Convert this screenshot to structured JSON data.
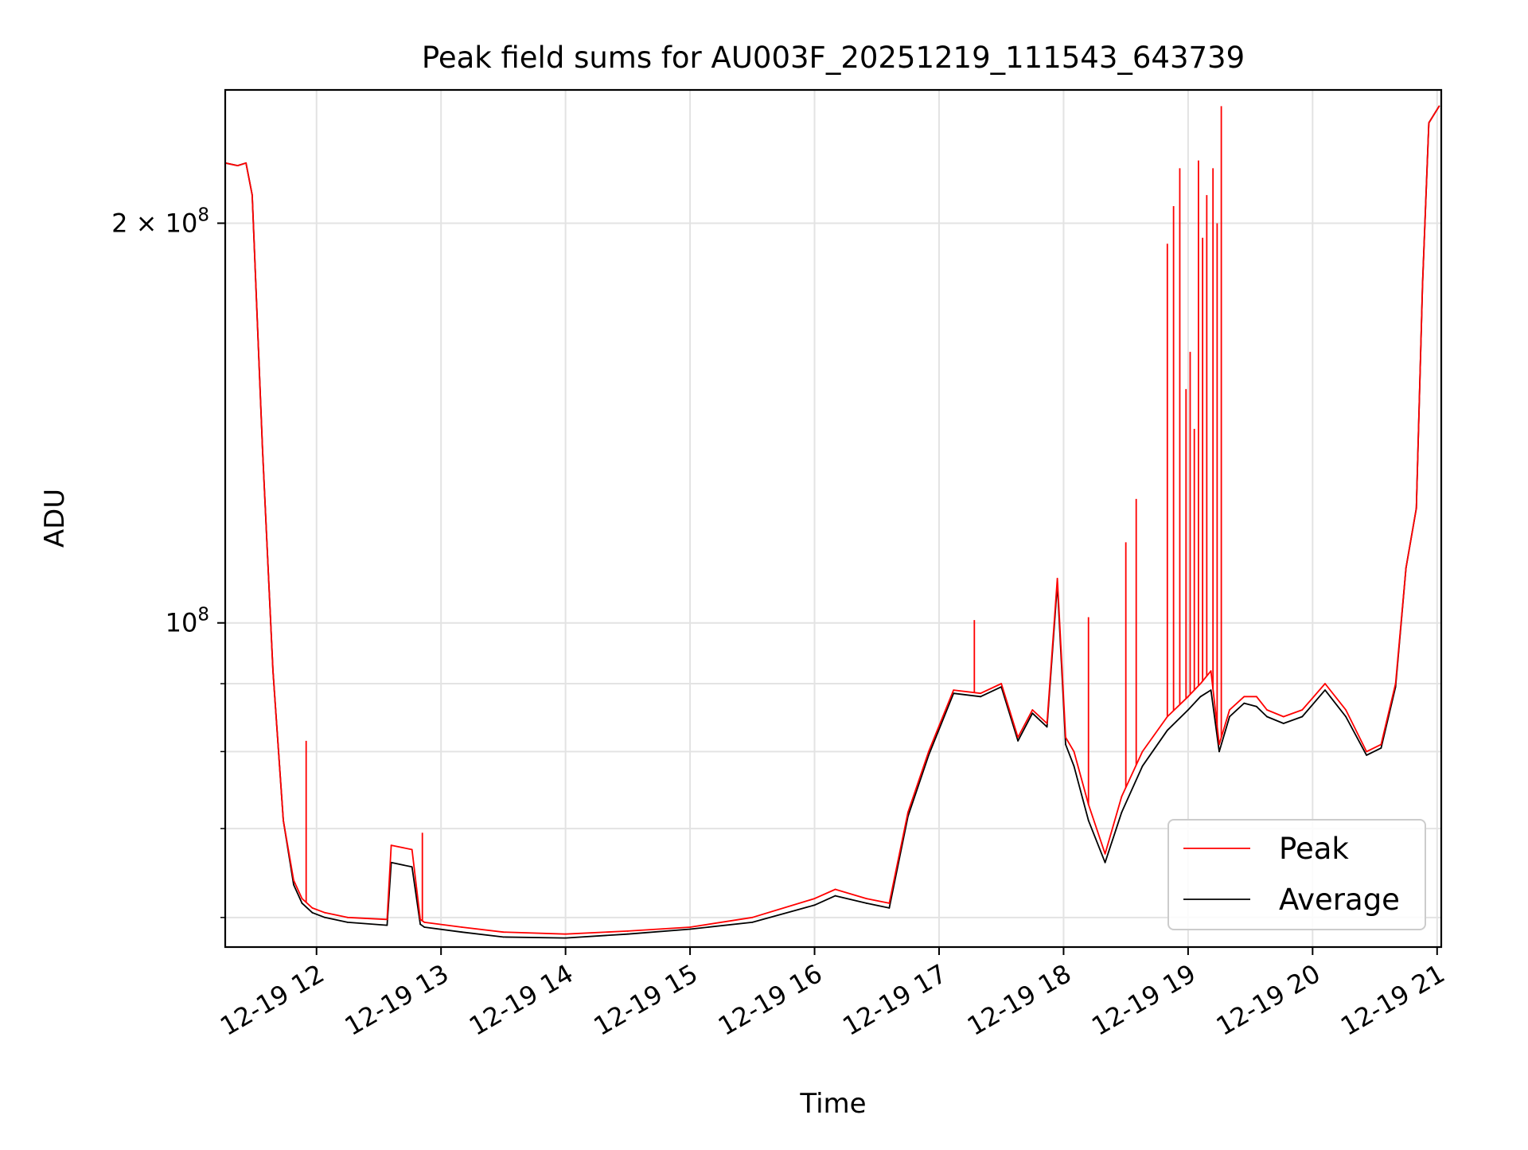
{
  "chart_data": {
    "type": "line",
    "title": "Peak field sums for AU003F_20251219_111543_643739",
    "xlabel": "Time",
    "ylabel": "ADU",
    "y_scale": "log",
    "grid": true,
    "legend_position": "lower-right",
    "xlim": [
      "2025-12-19 11:16",
      "2025-12-19 21:02"
    ],
    "ylim": [
      57000000,
      252000000
    ],
    "x_ticks": [
      {
        "value": "2025-12-19 12:00",
        "label": "12-19 12"
      },
      {
        "value": "2025-12-19 13:00",
        "label": "12-19 13"
      },
      {
        "value": "2025-12-19 14:00",
        "label": "12-19 14"
      },
      {
        "value": "2025-12-19 15:00",
        "label": "12-19 15"
      },
      {
        "value": "2025-12-19 16:00",
        "label": "12-19 16"
      },
      {
        "value": "2025-12-19 17:00",
        "label": "12-19 17"
      },
      {
        "value": "2025-12-19 18:00",
        "label": "12-19 18"
      },
      {
        "value": "2025-12-19 19:00",
        "label": "12-19 19"
      },
      {
        "value": "2025-12-19 20:00",
        "label": "12-19 20"
      },
      {
        "value": "2025-12-19 21:00",
        "label": "12-19 21"
      }
    ],
    "y_ticks_major": [
      {
        "value": 100000000,
        "base": "10",
        "exp": "8",
        "mantissa": ""
      },
      {
        "value": 200000000,
        "base": "10",
        "exp": "8",
        "mantissa": "2 × "
      }
    ],
    "y_ticks_minor": [
      60000000,
      70000000,
      80000000,
      90000000
    ],
    "series": [
      {
        "name": "Peak",
        "color": "#ff0000",
        "x": [
          "2025-12-19 11:16",
          "2025-12-19 11:22",
          "2025-12-19 11:26",
          "2025-12-19 11:29",
          "2025-12-19 11:34",
          "2025-12-19 11:39",
          "2025-12-19 11:44",
          "2025-12-19 11:49",
          "2025-12-19 11:53",
          "2025-12-19 11:58",
          "2025-12-19 12:04",
          "2025-12-19 12:15",
          "2025-12-19 12:34",
          "2025-12-19 12:36",
          "2025-12-19 12:46",
          "2025-12-19 12:50",
          "2025-12-19 12:52",
          "2025-12-19 13:10",
          "2025-12-19 13:30",
          "2025-12-19 14:00",
          "2025-12-19 14:30",
          "2025-12-19 15:00",
          "2025-12-19 15:30",
          "2025-12-19 16:00",
          "2025-12-19 16:10",
          "2025-12-19 16:25",
          "2025-12-19 16:36",
          "2025-12-19 16:45",
          "2025-12-19 16:55",
          "2025-12-19 17:07",
          "2025-12-19 17:20",
          "2025-12-19 17:30",
          "2025-12-19 17:38",
          "2025-12-19 17:45",
          "2025-12-19 17:52",
          "2025-12-19 17:57",
          "2025-12-19 18:01",
          "2025-12-19 18:05",
          "2025-12-19 18:12",
          "2025-12-19 18:20",
          "2025-12-19 18:28",
          "2025-12-19 18:38",
          "2025-12-19 18:50",
          "2025-12-19 19:00",
          "2025-12-19 19:06",
          "2025-12-19 19:11",
          "2025-12-19 19:15",
          "2025-12-19 19:20",
          "2025-12-19 19:27",
          "2025-12-19 19:33",
          "2025-12-19 19:38",
          "2025-12-19 19:46",
          "2025-12-19 19:55",
          "2025-12-19 20:06",
          "2025-12-19 20:16",
          "2025-12-19 20:26",
          "2025-12-19 20:33",
          "2025-12-19 20:40",
          "2025-12-19 20:45",
          "2025-12-19 20:50",
          "2025-12-19 20:53",
          "2025-12-19 20:56",
          "2025-12-19 21:01"
        ],
        "y": [
          222000000,
          221000000,
          222000000,
          210000000,
          135000000,
          92000000,
          71000000,
          64000000,
          62000000,
          61000000,
          60500000,
          60000000,
          59800000,
          68000000,
          67500000,
          59800000,
          59500000,
          59000000,
          58500000,
          58300000,
          58600000,
          59000000,
          60000000,
          62000000,
          63000000,
          62000000,
          61500000,
          72000000,
          80000000,
          89000000,
          88500000,
          90000000,
          82000000,
          86000000,
          84000000,
          108000000,
          82000000,
          80000000,
          73000000,
          67000000,
          74000000,
          80000000,
          85000000,
          88000000,
          90000000,
          92000000,
          81000000,
          86000000,
          88000000,
          88000000,
          86000000,
          85000000,
          86000000,
          90000000,
          86000000,
          80000000,
          81000000,
          90000000,
          110000000,
          122000000,
          180000000,
          238000000,
          245000000
        ],
        "spikes": [
          {
            "x": "2025-12-19 11:55",
            "y": 81500000
          },
          {
            "x": "2025-12-19 12:51",
            "y": 69500000
          },
          {
            "x": "2025-12-19 17:17",
            "y": 100500000
          },
          {
            "x": "2025-12-19 18:12",
            "y": 101000000
          },
          {
            "x": "2025-12-19 18:30",
            "y": 115000000
          },
          {
            "x": "2025-12-19 18:35",
            "y": 124000000
          },
          {
            "x": "2025-12-19 18:50",
            "y": 193000000
          },
          {
            "x": "2025-12-19 18:53",
            "y": 206000000
          },
          {
            "x": "2025-12-19 18:56",
            "y": 220000000
          },
          {
            "x": "2025-12-19 18:59",
            "y": 150000000
          },
          {
            "x": "2025-12-19 19:01",
            "y": 160000000
          },
          {
            "x": "2025-12-19 19:03",
            "y": 140000000
          },
          {
            "x": "2025-12-19 19:05",
            "y": 223000000
          },
          {
            "x": "2025-12-19 19:07",
            "y": 195000000
          },
          {
            "x": "2025-12-19 19:09",
            "y": 210000000
          },
          {
            "x": "2025-12-19 19:12",
            "y": 220000000
          },
          {
            "x": "2025-12-19 19:14",
            "y": 200000000
          },
          {
            "x": "2025-12-19 19:16",
            "y": 245000000
          }
        ]
      },
      {
        "name": "Average",
        "color": "#000000",
        "x": [
          "2025-12-19 11:16",
          "2025-12-19 11:22",
          "2025-12-19 11:26",
          "2025-12-19 11:29",
          "2025-12-19 11:34",
          "2025-12-19 11:39",
          "2025-12-19 11:44",
          "2025-12-19 11:49",
          "2025-12-19 11:53",
          "2025-12-19 11:58",
          "2025-12-19 12:04",
          "2025-12-19 12:15",
          "2025-12-19 12:34",
          "2025-12-19 12:36",
          "2025-12-19 12:46",
          "2025-12-19 12:50",
          "2025-12-19 12:52",
          "2025-12-19 13:10",
          "2025-12-19 13:30",
          "2025-12-19 14:00",
          "2025-12-19 14:30",
          "2025-12-19 15:00",
          "2025-12-19 15:30",
          "2025-12-19 16:00",
          "2025-12-19 16:10",
          "2025-12-19 16:25",
          "2025-12-19 16:36",
          "2025-12-19 16:45",
          "2025-12-19 16:55",
          "2025-12-19 17:07",
          "2025-12-19 17:20",
          "2025-12-19 17:30",
          "2025-12-19 17:38",
          "2025-12-19 17:45",
          "2025-12-19 17:52",
          "2025-12-19 17:57",
          "2025-12-19 18:01",
          "2025-12-19 18:05",
          "2025-12-19 18:12",
          "2025-12-19 18:20",
          "2025-12-19 18:28",
          "2025-12-19 18:38",
          "2025-12-19 18:50",
          "2025-12-19 19:00",
          "2025-12-19 19:06",
          "2025-12-19 19:11",
          "2025-12-19 19:15",
          "2025-12-19 19:20",
          "2025-12-19 19:27",
          "2025-12-19 19:33",
          "2025-12-19 19:38",
          "2025-12-19 19:46",
          "2025-12-19 19:55",
          "2025-12-19 20:06",
          "2025-12-19 20:16",
          "2025-12-19 20:26",
          "2025-12-19 20:33",
          "2025-12-19 20:40",
          "2025-12-19 20:45",
          "2025-12-19 20:50",
          "2025-12-19 20:53",
          "2025-12-19 20:56",
          "2025-12-19 21:01"
        ],
        "y": [
          222000000,
          221000000,
          222000000,
          210000000,
          135000000,
          92000000,
          71000000,
          63500000,
          61500000,
          60500000,
          60000000,
          59500000,
          59200000,
          66000000,
          65500000,
          59300000,
          59000000,
          58500000,
          58000000,
          57900000,
          58300000,
          58800000,
          59500000,
          61300000,
          62300000,
          61500000,
          61000000,
          71500000,
          79500000,
          88500000,
          88000000,
          89500000,
          81500000,
          85500000,
          83500000,
          107000000,
          81000000,
          78000000,
          71000000,
          66000000,
          72000000,
          78000000,
          83000000,
          86000000,
          88000000,
          89000000,
          80000000,
          85000000,
          87000000,
          86500000,
          85000000,
          84000000,
          85000000,
          89000000,
          85000000,
          79500000,
          80500000,
          89500000,
          110000000,
          122000000,
          180000000,
          238000000,
          245000000
        ]
      }
    ]
  }
}
